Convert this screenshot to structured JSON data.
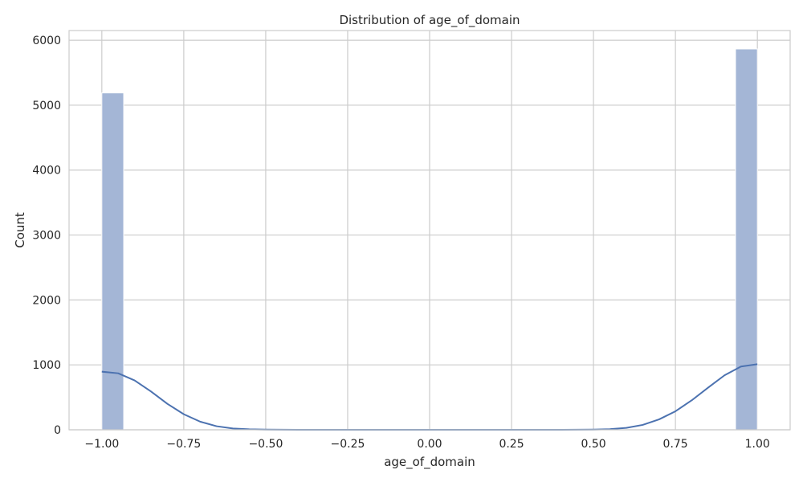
{
  "chart_data": {
    "type": "bar",
    "title": "Distribution of age_of_domain",
    "xlabel": "age_of_domain",
    "ylabel": "Count",
    "xlim": [
      -1.1,
      1.1
    ],
    "ylim": [
      0,
      6150
    ],
    "x_ticks": [
      -1.0,
      -0.75,
      -0.5,
      -0.25,
      0.0,
      0.25,
      0.5,
      0.75,
      1.0
    ],
    "x_tick_labels": [
      "−1.00",
      "−0.75",
      "−0.50",
      "−0.25",
      "0.00",
      "0.25",
      "0.50",
      "0.75",
      "1.00"
    ],
    "y_ticks": [
      0,
      1000,
      2000,
      3000,
      4000,
      5000,
      6000
    ],
    "y_tick_labels": [
      "0",
      "1000",
      "2000",
      "3000",
      "4000",
      "5000",
      "6000"
    ],
    "grid": true,
    "bars": [
      {
        "x0": -1.0,
        "x1": -0.9333,
        "count": 5189
      },
      {
        "x0": 0.9333,
        "x1": 1.0,
        "count": 5866
      }
    ],
    "kde": {
      "x": [
        -1.0,
        -0.95,
        -0.9,
        -0.85,
        -0.8,
        -0.75,
        -0.7,
        -0.65,
        -0.6,
        -0.55,
        -0.5,
        -0.45,
        -0.4,
        -0.35,
        -0.3,
        0.3,
        0.35,
        0.4,
        0.45,
        0.5,
        0.55,
        0.6,
        0.65,
        0.7,
        0.75,
        0.8,
        0.85,
        0.9,
        0.95,
        1.0
      ],
      "y": [
        895,
        870,
        760,
        590,
        400,
        240,
        125,
        55,
        20,
        8,
        3,
        1,
        0,
        0,
        0,
        0,
        0,
        0,
        1,
        3,
        10,
        30,
        75,
        160,
        285,
        455,
        650,
        840,
        975,
        1010
      ]
    },
    "colors": {
      "bar_fill": "#a4b6d6",
      "bar_edge": "#ffffff",
      "kde_line": "#4c72b0"
    }
  }
}
